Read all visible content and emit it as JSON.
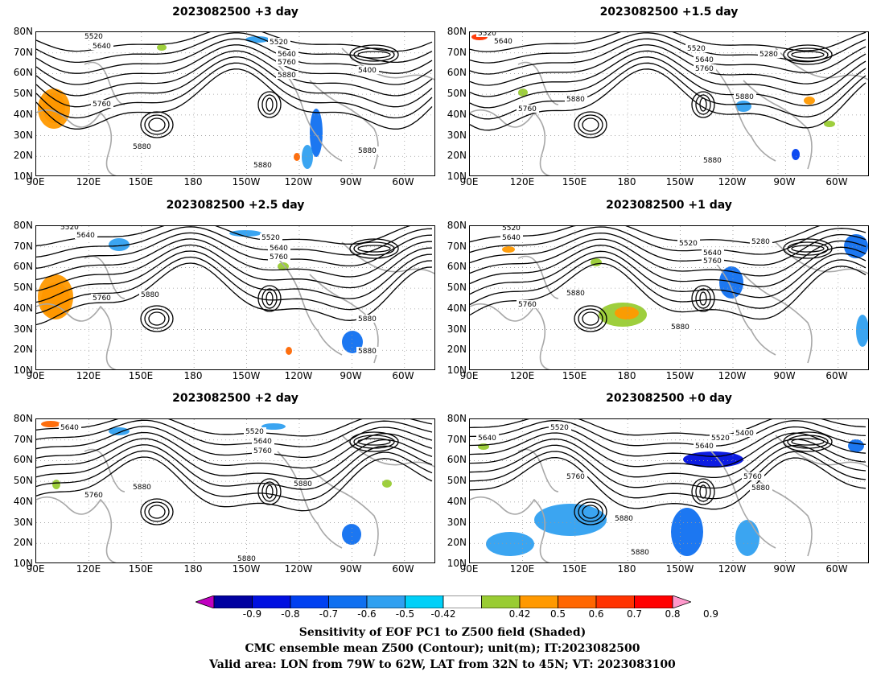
{
  "panels": [
    {
      "title": "2023082500 +3 day",
      "labels": [
        "5520",
        "5640",
        "5520",
        "5640",
        "5760",
        "5880",
        "5400",
        "5760",
        "5880",
        "5880",
        "5880"
      ]
    },
    {
      "title": "2023082500 +1.5 day",
      "labels": [
        "5520",
        "5640",
        "5520",
        "5640",
        "5760",
        "5280",
        "5760",
        "5880",
        "5880",
        "5880"
      ]
    },
    {
      "title": "2023082500 +2.5 day",
      "labels": [
        "5520",
        "5640",
        "5520",
        "5640",
        "5760",
        "5760",
        "5880",
        "5880",
        "5880"
      ]
    },
    {
      "title": "2023082500 +1 day",
      "labels": [
        "5520",
        "5640",
        "5520",
        "5280",
        "5640",
        "5760",
        "5760",
        "5880",
        "5880"
      ]
    },
    {
      "title": "2023082500 +2 day",
      "labels": [
        "5640",
        "5520",
        "5640",
        "5760",
        "5760",
        "5880",
        "5880",
        "5880"
      ]
    },
    {
      "title": "2023082500 +0 day",
      "labels": [
        "5640",
        "5520",
        "5520",
        "5400",
        "5640",
        "5760",
        "5760",
        "5880",
        "5880",
        "5880"
      ]
    }
  ],
  "lat_labels": [
    "80N",
    "70N",
    "60N",
    "50N",
    "40N",
    "30N",
    "20N",
    "10N"
  ],
  "lon_labels": [
    "90E",
    "120E",
    "150E",
    "180",
    "150W",
    "120W",
    "90W",
    "60W"
  ],
  "colorbar": {
    "labels": [
      "-0.9",
      "-0.8",
      "-0.7",
      "-0.6",
      "-0.5",
      "-0.42",
      "0.42",
      "0.5",
      "0.6",
      "0.7",
      "0.8",
      "0.9"
    ],
    "colors": [
      "#c000c0",
      "#0000a0",
      "#0010e0",
      "#0040f0",
      "#1070f0",
      "#30a0f0",
      "#00d0f8",
      "#ffffff",
      "#99cc33",
      "#ff9900",
      "#ff6600",
      "#ff3300",
      "#ff0000",
      "#ff99cc"
    ]
  },
  "captions": [
    "Sensitivity of EOF PC1 to Z500 field (Shaded)",
    "CMC ensemble mean Z500 (Contour); unit(m); IT:2023082500",
    "Valid area: LON from 79W to 62W, LAT from 32N to 45N; VT: 2023083100"
  ]
}
